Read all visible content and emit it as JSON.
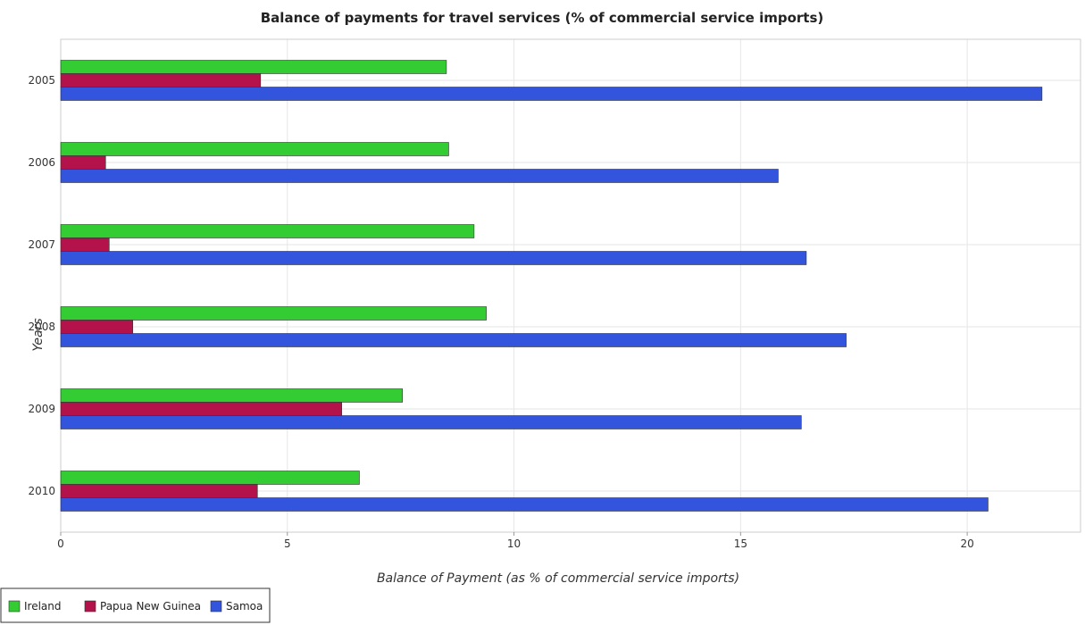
{
  "chart_data": {
    "type": "bar",
    "orientation": "horizontal",
    "title": "Balance of payments for travel services (% of commercial service imports)",
    "xlabel": "Balance of Payment (as % of commercial service imports)",
    "ylabel": "Years",
    "categories": [
      "2005",
      "2006",
      "2007",
      "2008",
      "2009",
      "2010"
    ],
    "xlim": [
      0,
      22.5
    ],
    "xticks": [
      0,
      5,
      10,
      15,
      20
    ],
    "xtick_labels": [
      "0",
      "5",
      "10",
      "15",
      "20"
    ],
    "grid": true,
    "legend_position": "bottom-left",
    "series": [
      {
        "name": "Ireland",
        "color": "#33cc33",
        "values": [
          8.51,
          8.56,
          9.12,
          9.39,
          7.54,
          6.59
        ]
      },
      {
        "name": "Papua New Guinea",
        "color": "#b3124a",
        "values": [
          4.41,
          0.99,
          1.07,
          1.59,
          6.2,
          4.34
        ]
      },
      {
        "name": "Samoa",
        "color": "#3355dd",
        "values": [
          21.65,
          15.83,
          16.45,
          17.33,
          16.34,
          20.46
        ]
      }
    ]
  }
}
